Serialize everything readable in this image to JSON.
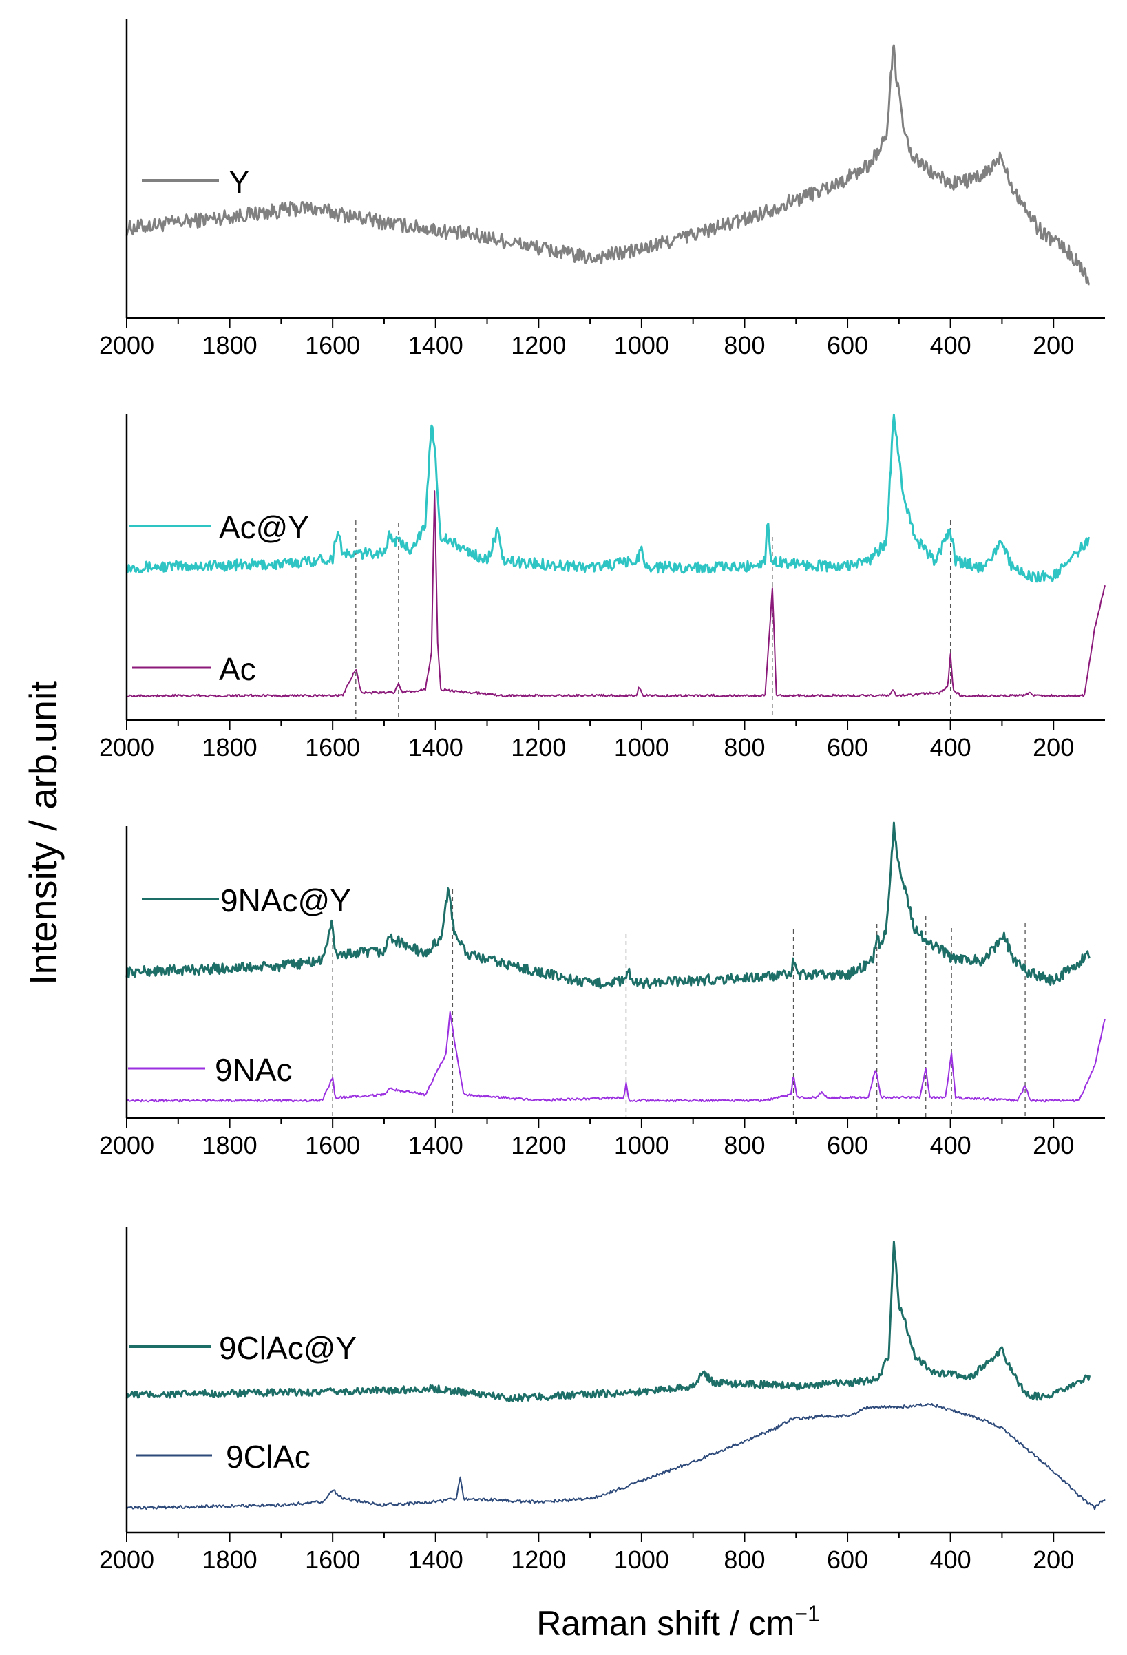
{
  "figure": {
    "ylabel": "Intensity / arb.unit",
    "xlabel_main": "Raman shift / cm",
    "xlabel_sup": "−1"
  },
  "colors": {
    "Y": "#808080",
    "Ac@Y": "#2ec4c4",
    "Ac": "#8b1a7a",
    "9NAc@Y": "#1e6e68",
    "9NAc": "#9b30e0",
    "9ClAc@Y": "#1e6e68",
    "9ClAc": "#2d4a7a",
    "axis": "#000000",
    "guide": "#555555"
  },
  "chart_data": [
    {
      "type": "line",
      "panel": "a",
      "xlim": [
        2000,
        100
      ],
      "xticks": [
        2000,
        1800,
        1600,
        1400,
        1200,
        1000,
        800,
        600,
        400,
        200
      ],
      "series": [
        {
          "name": "Y",
          "profile": [
            [
              2000,
              0.3
            ],
            [
              1800,
              0.34
            ],
            [
              1650,
              0.37
            ],
            [
              1500,
              0.32
            ],
            [
              1300,
              0.27
            ],
            [
              1100,
              0.2
            ],
            [
              1000,
              0.23
            ],
            [
              800,
              0.33
            ],
            [
              620,
              0.45
            ],
            [
              560,
              0.51
            ],
            [
              525,
              0.6
            ],
            [
              510,
              0.93
            ],
            [
              505,
              0.8
            ],
            [
              495,
              0.68
            ],
            [
              480,
              0.55
            ],
            [
              440,
              0.49
            ],
            [
              400,
              0.45
            ],
            [
              340,
              0.47
            ],
            [
              300,
              0.54
            ],
            [
              280,
              0.44
            ],
            [
              230,
              0.3
            ],
            [
              170,
              0.22
            ],
            [
              130,
              0.13
            ]
          ],
          "noise": 0.025
        }
      ],
      "guides": []
    },
    {
      "type": "line",
      "panel": "b",
      "xlim": [
        2000,
        100
      ],
      "xticks": [
        2000,
        1800,
        1600,
        1400,
        1200,
        1000,
        800,
        600,
        400,
        200
      ],
      "series": [
        {
          "name": "Ac@Y",
          "profile": [
            [
              2000,
              0.5
            ],
            [
              1700,
              0.51
            ],
            [
              1600,
              0.53
            ],
            [
              1590,
              0.63
            ],
            [
              1580,
              0.54
            ],
            [
              1500,
              0.55
            ],
            [
              1490,
              0.6
            ],
            [
              1450,
              0.56
            ],
            [
              1420,
              0.63
            ],
            [
              1408,
              0.98
            ],
            [
              1400,
              0.85
            ],
            [
              1390,
              0.6
            ],
            [
              1300,
              0.52
            ],
            [
              1280,
              0.62
            ],
            [
              1270,
              0.52
            ],
            [
              1100,
              0.5
            ],
            [
              1010,
              0.52
            ],
            [
              1000,
              0.56
            ],
            [
              990,
              0.5
            ],
            [
              800,
              0.5
            ],
            [
              760,
              0.52
            ],
            [
              755,
              0.66
            ],
            [
              748,
              0.52
            ],
            [
              620,
              0.5
            ],
            [
              560,
              0.52
            ],
            [
              525,
              0.58
            ],
            [
              510,
              1.0
            ],
            [
              500,
              0.86
            ],
            [
              490,
              0.72
            ],
            [
              470,
              0.6
            ],
            [
              430,
              0.52
            ],
            [
              400,
              0.62
            ],
            [
              390,
              0.52
            ],
            [
              340,
              0.5
            ],
            [
              310,
              0.56
            ],
            [
              300,
              0.58
            ],
            [
              280,
              0.5
            ],
            [
              250,
              0.47
            ],
            [
              200,
              0.47
            ],
            [
              130,
              0.59
            ]
          ],
          "noise": 0.018
        },
        {
          "name": "Ac",
          "profile": [
            [
              2000,
              0.08
            ],
            [
              1580,
              0.08
            ],
            [
              1555,
              0.17
            ],
            [
              1545,
              0.09
            ],
            [
              1480,
              0.09
            ],
            [
              1472,
              0.12
            ],
            [
              1465,
              0.09
            ],
            [
              1420,
              0.1
            ],
            [
              1408,
              0.22
            ],
            [
              1402,
              0.75
            ],
            [
              1396,
              0.25
            ],
            [
              1390,
              0.1
            ],
            [
              1270,
              0.08
            ],
            [
              1010,
              0.08
            ],
            [
              1005,
              0.11
            ],
            [
              998,
              0.08
            ],
            [
              760,
              0.08
            ],
            [
              746,
              0.43
            ],
            [
              738,
              0.08
            ],
            [
              520,
              0.08
            ],
            [
              512,
              0.1
            ],
            [
              505,
              0.08
            ],
            [
              420,
              0.09
            ],
            [
              405,
              0.11
            ],
            [
              400,
              0.22
            ],
            [
              395,
              0.1
            ],
            [
              380,
              0.08
            ],
            [
              260,
              0.08
            ],
            [
              245,
              0.09
            ],
            [
              240,
              0.08
            ],
            [
              140,
              0.08
            ],
            [
              120,
              0.3
            ],
            [
              100,
              0.44
            ]
          ],
          "noise": 0.004
        }
      ],
      "guides": [
        1555,
        1472,
        746,
        400
      ]
    },
    {
      "type": "line",
      "panel": "c",
      "xlim": [
        2000,
        100
      ],
      "xticks": [
        2000,
        1800,
        1600,
        1400,
        1200,
        1000,
        800,
        600,
        400,
        200
      ],
      "series": [
        {
          "name": "9NAc@Y",
          "profile": [
            [
              2000,
              0.5
            ],
            [
              1700,
              0.52
            ],
            [
              1620,
              0.54
            ],
            [
              1602,
              0.67
            ],
            [
              1595,
              0.56
            ],
            [
              1500,
              0.57
            ],
            [
              1490,
              0.62
            ],
            [
              1420,
              0.56
            ],
            [
              1390,
              0.62
            ],
            [
              1375,
              0.78
            ],
            [
              1365,
              0.65
            ],
            [
              1340,
              0.56
            ],
            [
              1200,
              0.5
            ],
            [
              1100,
              0.46
            ],
            [
              1030,
              0.47
            ],
            [
              1025,
              0.52
            ],
            [
              1020,
              0.46
            ],
            [
              800,
              0.48
            ],
            [
              710,
              0.49
            ],
            [
              705,
              0.54
            ],
            [
              698,
              0.49
            ],
            [
              600,
              0.49
            ],
            [
              550,
              0.54
            ],
            [
              543,
              0.63
            ],
            [
              535,
              0.58
            ],
            [
              525,
              0.65
            ],
            [
              510,
              1.0
            ],
            [
              500,
              0.86
            ],
            [
              490,
              0.8
            ],
            [
              470,
              0.65
            ],
            [
              445,
              0.6
            ],
            [
              420,
              0.58
            ],
            [
              400,
              0.55
            ],
            [
              340,
              0.54
            ],
            [
              305,
              0.6
            ],
            [
              295,
              0.62
            ],
            [
              280,
              0.55
            ],
            [
              250,
              0.5
            ],
            [
              200,
              0.47
            ],
            [
              130,
              0.56
            ]
          ],
          "noise": 0.018
        },
        {
          "name": "9NAc",
          "profile": [
            [
              2000,
              0.06
            ],
            [
              1620,
              0.06
            ],
            [
              1600,
              0.14
            ],
            [
              1595,
              0.07
            ],
            [
              1500,
              0.08
            ],
            [
              1490,
              0.1
            ],
            [
              1420,
              0.08
            ],
            [
              1380,
              0.22
            ],
            [
              1372,
              0.36
            ],
            [
              1362,
              0.25
            ],
            [
              1345,
              0.08
            ],
            [
              1200,
              0.06
            ],
            [
              1035,
              0.07
            ],
            [
              1030,
              0.12
            ],
            [
              1025,
              0.06
            ],
            [
              760,
              0.06
            ],
            [
              710,
              0.08
            ],
            [
              705,
              0.15
            ],
            [
              698,
              0.07
            ],
            [
              660,
              0.07
            ],
            [
              650,
              0.09
            ],
            [
              640,
              0.07
            ],
            [
              560,
              0.07
            ],
            [
              545,
              0.17
            ],
            [
              535,
              0.07
            ],
            [
              460,
              0.07
            ],
            [
              448,
              0.17
            ],
            [
              440,
              0.07
            ],
            [
              410,
              0.07
            ],
            [
              398,
              0.22
            ],
            [
              390,
              0.07
            ],
            [
              270,
              0.06
            ],
            [
              255,
              0.11
            ],
            [
              245,
              0.06
            ],
            [
              150,
              0.06
            ],
            [
              120,
              0.18
            ],
            [
              100,
              0.34
            ]
          ],
          "noise": 0.004
        }
      ],
      "guides": [
        1600,
        1367,
        1030,
        705,
        543,
        448,
        398,
        255
      ]
    },
    {
      "type": "line",
      "panel": "d",
      "xlim": [
        2000,
        100
      ],
      "xticks": [
        2000,
        1800,
        1600,
        1400,
        1200,
        1000,
        800,
        600,
        400,
        200
      ],
      "series": [
        {
          "name": "9ClAc@Y",
          "profile": [
            [
              2000,
              0.45
            ],
            [
              1600,
              0.46
            ],
            [
              1400,
              0.47
            ],
            [
              1250,
              0.44
            ],
            [
              1000,
              0.46
            ],
            [
              900,
              0.48
            ],
            [
              880,
              0.52
            ],
            [
              860,
              0.49
            ],
            [
              700,
              0.48
            ],
            [
              600,
              0.49
            ],
            [
              540,
              0.5
            ],
            [
              520,
              0.58
            ],
            [
              510,
              0.96
            ],
            [
              500,
              0.74
            ],
            [
              490,
              0.7
            ],
            [
              470,
              0.58
            ],
            [
              430,
              0.52
            ],
            [
              360,
              0.51
            ],
            [
              310,
              0.58
            ],
            [
              300,
              0.6
            ],
            [
              280,
              0.52
            ],
            [
              250,
              0.45
            ],
            [
              210,
              0.44
            ],
            [
              130,
              0.51
            ]
          ],
          "noise": 0.012
        },
        {
          "name": "9ClAc",
          "profile": [
            [
              2000,
              0.08
            ],
            [
              1700,
              0.09
            ],
            [
              1620,
              0.1
            ],
            [
              1600,
              0.14
            ],
            [
              1580,
              0.11
            ],
            [
              1500,
              0.09
            ],
            [
              1400,
              0.1
            ],
            [
              1360,
              0.11
            ],
            [
              1352,
              0.18
            ],
            [
              1345,
              0.11
            ],
            [
              1200,
              0.1
            ],
            [
              1100,
              0.11
            ],
            [
              1030,
              0.15
            ],
            [
              1000,
              0.17
            ],
            [
              900,
              0.23
            ],
            [
              800,
              0.3
            ],
            [
              740,
              0.34
            ],
            [
              710,
              0.37
            ],
            [
              650,
              0.38
            ],
            [
              600,
              0.38
            ],
            [
              560,
              0.41
            ],
            [
              500,
              0.41
            ],
            [
              440,
              0.42
            ],
            [
              400,
              0.4
            ],
            [
              340,
              0.37
            ],
            [
              300,
              0.34
            ],
            [
              250,
              0.27
            ],
            [
              200,
              0.2
            ],
            [
              150,
              0.12
            ],
            [
              120,
              0.08
            ],
            [
              100,
              0.11
            ]
          ],
          "noise": 0.005
        }
      ],
      "guides": []
    }
  ]
}
